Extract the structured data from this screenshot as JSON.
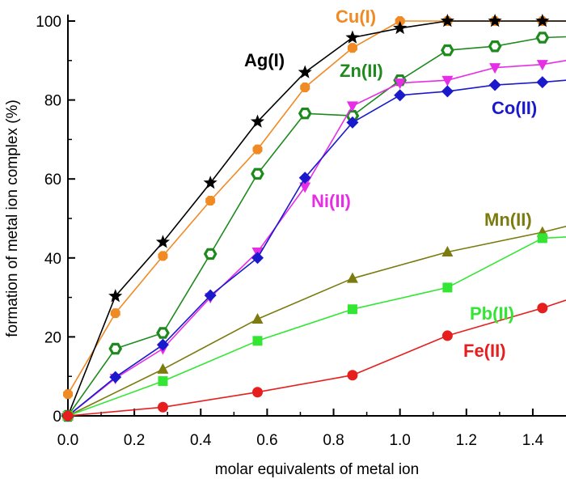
{
  "chart_data": {
    "type": "line",
    "title": "",
    "xlabel": "molar equivalents of metal ion",
    "ylabel": "formation of metal ion complex (%)",
    "xlim": [
      0.0,
      1.5
    ],
    "ylim": [
      0,
      100
    ],
    "xticks": [
      0.0,
      0.2,
      0.4,
      0.6,
      0.8,
      1.0,
      1.2,
      1.4
    ],
    "xtick_labels": [
      "0.0",
      "0.2",
      "0.4",
      "0.6",
      "0.8",
      "1.0",
      "1.2",
      "1.4"
    ],
    "yticks": [
      0,
      20,
      40,
      60,
      80,
      100
    ],
    "ytick_labels": [
      "0",
      "20",
      "40",
      "60",
      "80",
      "100"
    ],
    "grid": false,
    "series": [
      {
        "name": "Cu(I)",
        "label": "Cu(I)",
        "color": "#f08a24",
        "marker": "octagon",
        "x": [
          0,
          0.143,
          0.286,
          0.429,
          0.571,
          0.714,
          0.857,
          1.0,
          1.143,
          1.286,
          1.429
        ],
        "y": [
          5.5,
          26,
          40.5,
          54.5,
          67.5,
          83.2,
          93.2,
          100,
          100,
          100,
          100
        ],
        "extend_to": [
          1.5,
          100
        ]
      },
      {
        "name": "Ag(I)",
        "label": "Ag(I)",
        "color": "#000000",
        "marker": "star",
        "x": [
          0,
          0.143,
          0.286,
          0.429,
          0.571,
          0.714,
          0.857,
          1.0,
          1.143,
          1.286,
          1.429
        ],
        "y": [
          0,
          30.3,
          44,
          59,
          74.5,
          87,
          95.8,
          98.2,
          100,
          100,
          100
        ],
        "extend_to": [
          1.5,
          100
        ]
      },
      {
        "name": "Zn(II)",
        "label": "Zn(II)",
        "color": "#1e8a1e",
        "marker": "ring",
        "x": [
          0,
          0.143,
          0.286,
          0.429,
          0.571,
          0.714,
          0.857,
          1.0,
          1.143,
          1.286,
          1.429
        ],
        "y": [
          0,
          17,
          21,
          41,
          61.3,
          76.6,
          76,
          85,
          92.6,
          93.6,
          95.8
        ],
        "extend_to": [
          1.5,
          96
        ]
      },
      {
        "name": "Ni(II)",
        "label": "Ni(II)",
        "color": "#e62ee6",
        "marker": "triangle-down",
        "x": [
          0,
          0.143,
          0.286,
          0.429,
          0.571,
          0.714,
          0.857,
          1.0,
          1.143,
          1.286,
          1.429
        ],
        "y": [
          0,
          9.5,
          17,
          30,
          41.5,
          58,
          78.5,
          84.3,
          85,
          88.2,
          89
        ],
        "extend_to": [
          1.5,
          90
        ]
      },
      {
        "name": "Co(II)",
        "label": "Co(II)",
        "color": "#1a1acc",
        "marker": "diamond",
        "x": [
          0,
          0.143,
          0.286,
          0.429,
          0.571,
          0.714,
          0.857,
          1.0,
          1.143,
          1.286,
          1.429
        ],
        "y": [
          0,
          9.8,
          18,
          30.5,
          40,
          60.3,
          74.3,
          81.2,
          82.2,
          83.8,
          84.5
        ],
        "extend_to": [
          1.5,
          85
        ]
      },
      {
        "name": "Mn(II)",
        "label": "Mn(II)",
        "color": "#7b7b0f",
        "marker": "triangle-up",
        "x": [
          0,
          0.286,
          0.571,
          0.857,
          1.143,
          1.429
        ],
        "y": [
          0,
          11.8,
          24.5,
          34.8,
          41.5,
          46.5
        ],
        "extend_to": [
          1.5,
          48
        ]
      },
      {
        "name": "Pb(II)",
        "label": "Pb(II)",
        "color": "#33e633",
        "marker": "square",
        "x": [
          0,
          0.286,
          0.571,
          0.857,
          1.143,
          1.429
        ],
        "y": [
          0,
          8.8,
          19,
          27,
          32.5,
          45
        ],
        "extend_to": [
          1.5,
          45.3
        ]
      },
      {
        "name": "Fe(II)",
        "label": "Fe(II)",
        "color": "#e61e1e",
        "marker": "circle",
        "x": [
          0,
          0.286,
          0.571,
          0.857,
          1.143,
          1.429
        ],
        "y": [
          0,
          2.2,
          6,
          10.3,
          20.3,
          27.3
        ],
        "extend_to": [
          1.5,
          29.3
        ]
      }
    ]
  }
}
